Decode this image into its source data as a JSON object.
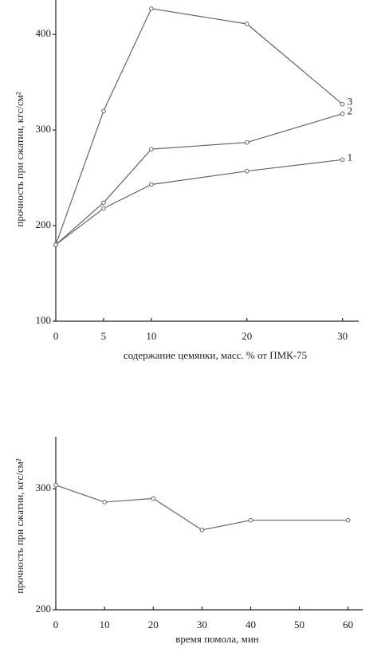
{
  "chart_data": [
    {
      "type": "line",
      "x_label": "содержание цемянки, масс. % от ПМК-75",
      "y_label": "прочность при сжатии, кгс/см²",
      "xlim": [
        0,
        31.7
      ],
      "xticks": [
        0,
        5,
        10,
        20,
        30
      ],
      "ylim": [
        100,
        436
      ],
      "yticks": [
        100,
        200,
        300,
        400
      ],
      "x": [
        0,
        5,
        10,
        20,
        30
      ],
      "series": [
        {
          "name": "1",
          "color": "#666666",
          "values": [
            180,
            218,
            243,
            257,
            269
          ]
        },
        {
          "name": "2",
          "color": "#666666",
          "values": [
            180,
            224,
            280,
            287,
            317
          ]
        },
        {
          "name": "3",
          "color": "#666666",
          "values": [
            180,
            320,
            427,
            411,
            327
          ]
        }
      ]
    },
    {
      "type": "line",
      "x_label": "время помола, мин",
      "y_label": "прочность при сжатии, кгс/см²",
      "xlim": [
        0,
        63
      ],
      "xticks": [
        0,
        10,
        20,
        30,
        40,
        50,
        60
      ],
      "ylim": [
        200,
        343
      ],
      "yticks": [
        200,
        300
      ],
      "x": [
        0,
        10,
        20,
        30,
        40,
        60
      ],
      "series": [
        {
          "color": "#666666",
          "values": [
            303,
            289,
            292,
            266,
            274,
            274
          ]
        }
      ]
    }
  ]
}
